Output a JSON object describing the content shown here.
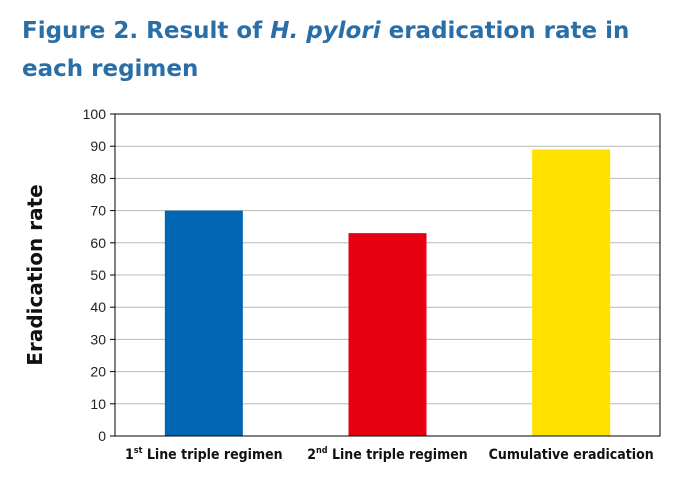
{
  "title": {
    "prefix": "Figure 2. Result of ",
    "italic": "H. pylori",
    "suffix": " eradication rate in each regimen"
  },
  "chart_data": {
    "type": "bar",
    "title": "Figure 2. Result of H. pylori eradication rate in each regimen",
    "categories": [
      {
        "main": "1",
        "sup": "st",
        "rest": " Line triple regimen"
      },
      {
        "main": "2",
        "sup": "nd",
        "rest": " Line triple regimen"
      },
      {
        "main": "Cumulative eradication",
        "sup": "",
        "rest": ""
      }
    ],
    "values": [
      70,
      63,
      89
    ],
    "colors": [
      "#0066b3",
      "#e60012",
      "#ffe100"
    ],
    "ylabel": "Eradication rate",
    "xlabel": "",
    "ylim": [
      0,
      100
    ],
    "yticks": [
      0,
      10,
      20,
      30,
      40,
      50,
      60,
      70,
      80,
      90,
      100
    ],
    "grid": true
  }
}
